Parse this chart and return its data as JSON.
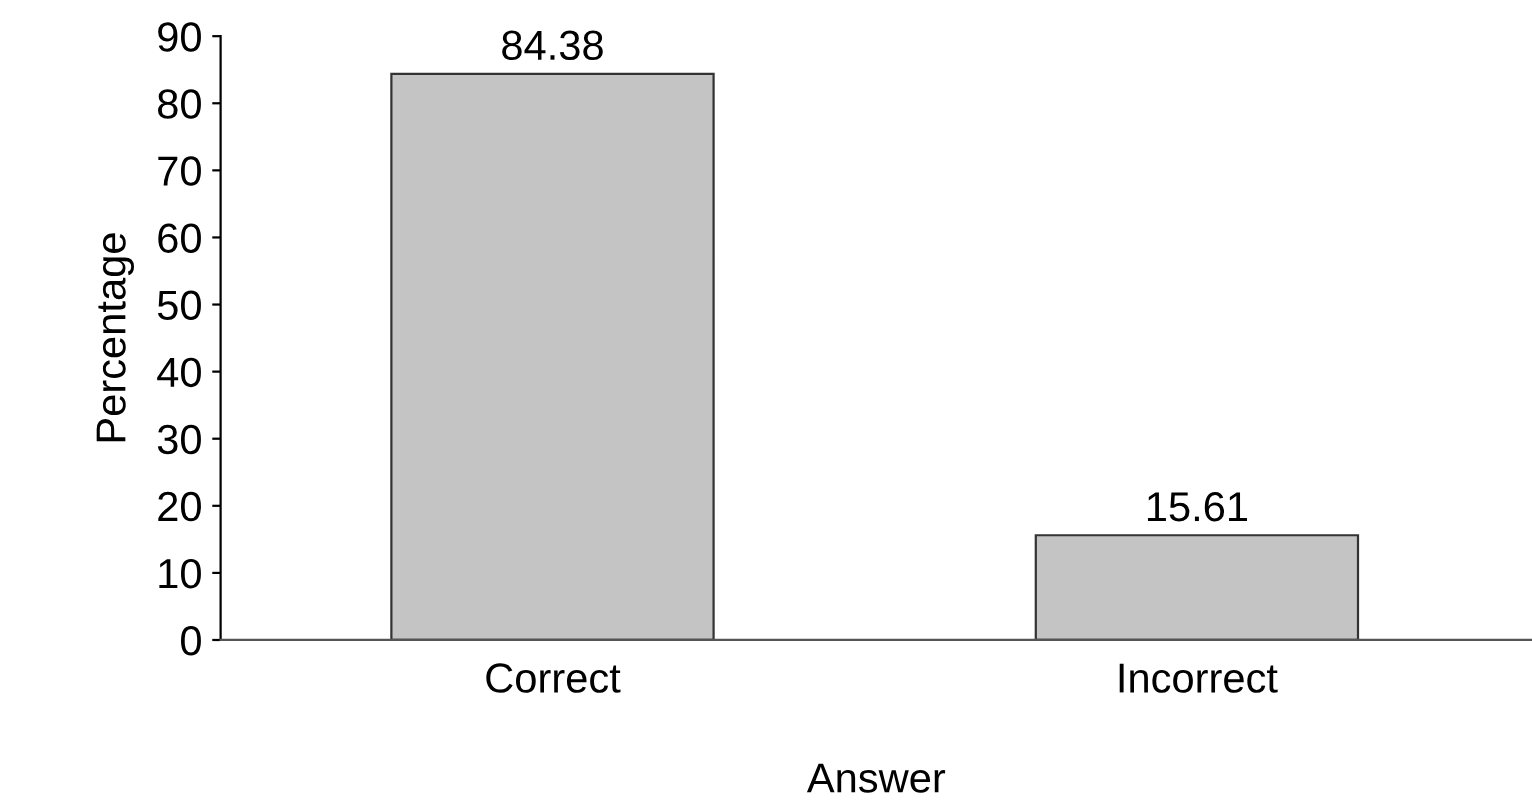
{
  "chart_data": {
    "type": "bar",
    "xlabel": "Answer",
    "ylabel": "Percentage",
    "categories": [
      "Correct",
      "Incorrect"
    ],
    "values": [
      84.38,
      15.61
    ],
    "color": "#c4c4c4",
    "ylim": [
      0,
      90
    ],
    "yticks": [
      0,
      10,
      20,
      30,
      40,
      50,
      60,
      70,
      80,
      90
    ],
    "data_labels": true,
    "grid": false,
    "legend": false
  }
}
